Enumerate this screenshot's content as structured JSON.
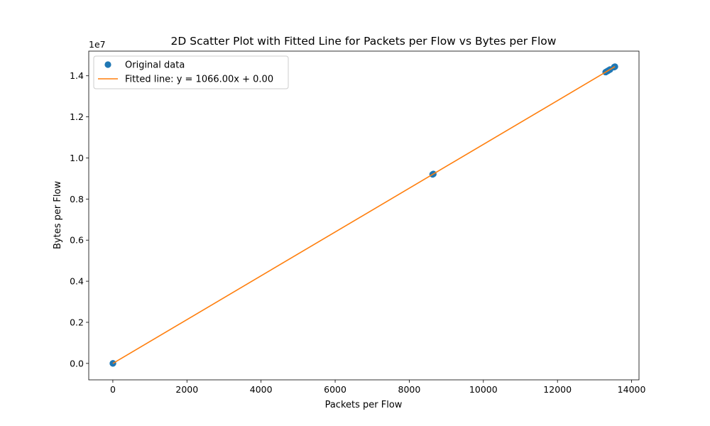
{
  "chart_data": {
    "type": "scatter",
    "title": "2D Scatter Plot with Fitted Line for Packets per Flow vs Bytes per Flow",
    "xlabel": "Packets per Flow",
    "ylabel": "Bytes per Flow",
    "y_offset_text": "1e7",
    "xlim": [
      -650,
      14200
    ],
    "ylim": [
      -800000,
      15200000
    ],
    "x_ticks": [
      0,
      2000,
      4000,
      6000,
      8000,
      10000,
      12000,
      14000
    ],
    "x_tick_labels": [
      "0",
      "2000",
      "4000",
      "6000",
      "8000",
      "10000",
      "12000",
      "14000"
    ],
    "y_ticks": [
      0,
      2000000,
      4000000,
      6000000,
      8000000,
      10000000,
      12000000,
      14000000
    ],
    "y_tick_labels": [
      "0.0",
      "0.2",
      "0.4",
      "0.6",
      "0.8",
      "1.0",
      "1.2",
      "1.4"
    ],
    "grid": false,
    "legend_position": "top-left",
    "series": [
      {
        "name": "Original data",
        "kind": "scatter",
        "color": "#1f77b4",
        "points": [
          {
            "x": 0,
            "y": 0
          },
          {
            "x": 4,
            "y": 4264
          },
          {
            "x": 8650,
            "y": 9220900
          },
          {
            "x": 8630,
            "y": 9199580
          },
          {
            "x": 13300,
            "y": 14177800
          },
          {
            "x": 13340,
            "y": 14220440
          },
          {
            "x": 13380,
            "y": 14263080
          },
          {
            "x": 13420,
            "y": 14305720
          },
          {
            "x": 13530,
            "y": 14422980
          },
          {
            "x": 13550,
            "y": 14444300
          }
        ]
      },
      {
        "name": "Fitted line: y = 1066.00x + 0.00",
        "kind": "line",
        "color": "#ff7f0e",
        "slope": 1066.0,
        "intercept": 0.0,
        "x_range": [
          0,
          13550
        ]
      }
    ]
  }
}
